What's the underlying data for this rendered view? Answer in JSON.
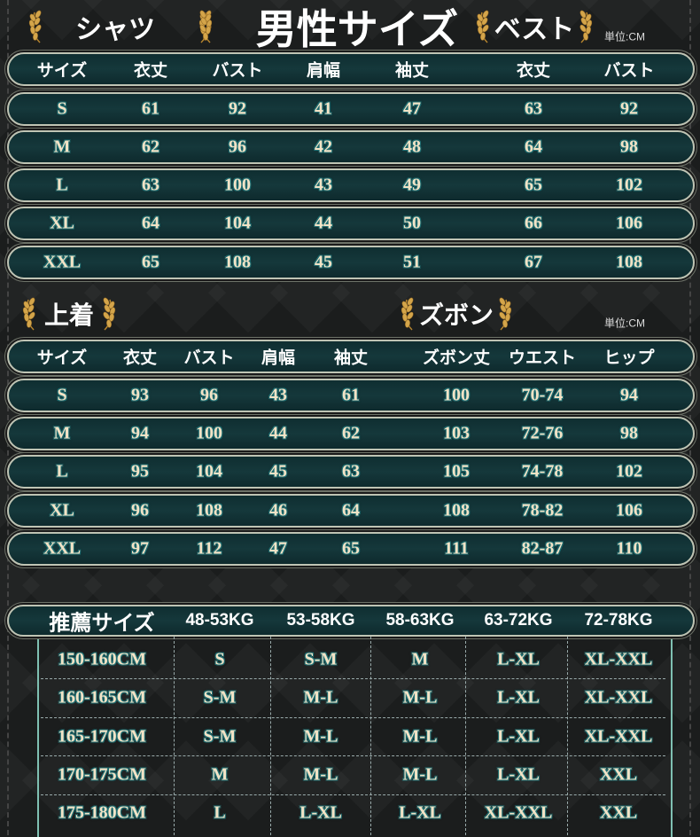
{
  "title": "男性サイズ",
  "shirt_title": "シャツ",
  "vest_title": "ベスト",
  "jacket_title": "上着",
  "pants_title": "ズボン",
  "unit_label": "単位:CM",
  "laurel_icon": "gold-laurel",
  "colors": {
    "band": "#15383b",
    "text": "#f2e3c6",
    "outline": "#1f6e72",
    "grid": "#7fc0b2"
  },
  "table1": {
    "headers": [
      "サイズ",
      "衣丈",
      "バスト",
      "肩幅",
      "袖丈",
      "衣丈",
      "バスト"
    ],
    "rows": [
      [
        "S",
        "61",
        "92",
        "41",
        "47",
        "63",
        "92"
      ],
      [
        "M",
        "62",
        "96",
        "42",
        "48",
        "64",
        "98"
      ],
      [
        "L",
        "63",
        "100",
        "43",
        "49",
        "65",
        "102"
      ],
      [
        "XL",
        "64",
        "104",
        "44",
        "50",
        "66",
        "106"
      ],
      [
        "XXL",
        "65",
        "108",
        "45",
        "51",
        "67",
        "108"
      ]
    ]
  },
  "table2": {
    "headers": [
      "サイズ",
      "衣丈",
      "バスト",
      "肩幅",
      "袖丈",
      "ズボン丈",
      "ウエスト",
      "ヒップ"
    ],
    "rows": [
      [
        "S",
        "93",
        "96",
        "43",
        "61",
        "100",
        "70-74",
        "94"
      ],
      [
        "M",
        "94",
        "100",
        "44",
        "62",
        "103",
        "72-76",
        "98"
      ],
      [
        "L",
        "95",
        "104",
        "45",
        "63",
        "105",
        "74-78",
        "102"
      ],
      [
        "XL",
        "96",
        "108",
        "46",
        "64",
        "108",
        "78-82",
        "106"
      ],
      [
        "XXL",
        "97",
        "112",
        "47",
        "65",
        "111",
        "82-87",
        "110"
      ]
    ]
  },
  "table3": {
    "headers": [
      "推薦サイズ",
      "48-53KG",
      "53-58KG",
      "58-63KG",
      "63-72KG",
      "72-78KG"
    ],
    "rows": [
      [
        "150-160CM",
        "S",
        "S-M",
        "M",
        "L-XL",
        "XL-XXL"
      ],
      [
        "160-165CM",
        "S-M",
        "M-L",
        "M-L",
        "L-XL",
        "XL-XXL"
      ],
      [
        "165-170CM",
        "S-M",
        "M-L",
        "M-L",
        "L-XL",
        "XL-XXL"
      ],
      [
        "170-175CM",
        "M",
        "M-L",
        "M-L",
        "L-XL",
        "XXL"
      ],
      [
        "175-180CM",
        "L",
        "L-XL",
        "L-XL",
        "XL-XXL",
        "XXL"
      ]
    ]
  }
}
